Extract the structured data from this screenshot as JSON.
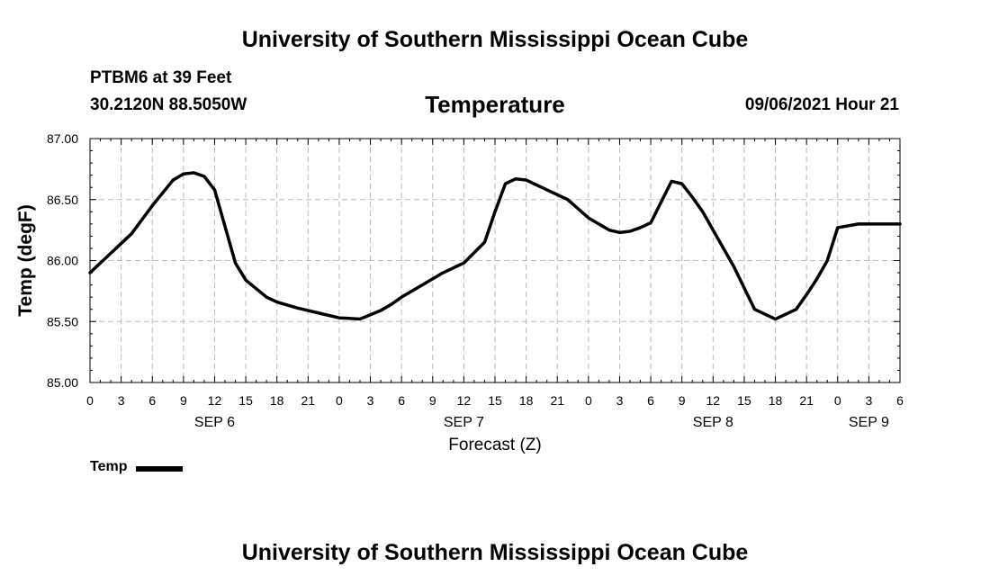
{
  "header": {
    "top_title": "University of Southern Mississippi Ocean Cube",
    "station": "PTBM6 at 39 Feet",
    "coords": "30.2120N  88.5050W",
    "datetime": "09/06/2021 Hour 21",
    "bottom_title": "University of Southern Mississippi Ocean Cube"
  },
  "legend": {
    "label": "Temp"
  },
  "chart_data": {
    "type": "line",
    "title": "Temperature",
    "xlabel": "Forecast (Z)",
    "ylabel": "Temp (degF)",
    "xlim": [
      0,
      78
    ],
    "ylim": [
      85.0,
      87.0
    ],
    "grid": true,
    "y_ticks": [
      85.0,
      85.5,
      86.0,
      86.5,
      87.0
    ],
    "y_tick_labels": [
      "85.00",
      "85.50",
      "86.00",
      "86.50",
      "87.00"
    ],
    "x_ticks": [
      0,
      3,
      6,
      9,
      12,
      15,
      18,
      21,
      24,
      27,
      30,
      33,
      36,
      39,
      42,
      45,
      48,
      51,
      54,
      57,
      60,
      63,
      66,
      69,
      72,
      75,
      78
    ],
    "x_tick_labels": [
      "0",
      "3",
      "6",
      "9",
      "12",
      "15",
      "18",
      "21",
      "0",
      "3",
      "6",
      "9",
      "12",
      "15",
      "18",
      "21",
      "0",
      "3",
      "6",
      "9",
      "12",
      "15",
      "18",
      "21",
      "0",
      "3",
      "6"
    ],
    "day_labels": [
      {
        "text": "SEP 6",
        "hours": 12
      },
      {
        "text": "SEP 7",
        "hours": 36
      },
      {
        "text": "SEP 8",
        "hours": 60
      },
      {
        "text": "SEP 9",
        "hours": 75
      }
    ],
    "series": [
      {
        "name": "Temp",
        "color": "#000000",
        "x": [
          0,
          2,
          4,
          6,
          8,
          9,
          10,
          11,
          12,
          13,
          14,
          15,
          16,
          17,
          18,
          20,
          22,
          24,
          26,
          28,
          29,
          30,
          32,
          34,
          36,
          38,
          39,
          40,
          41,
          42,
          43,
          44,
          46,
          48,
          50,
          51,
          52,
          53,
          54,
          55,
          56,
          57,
          58,
          59,
          60,
          61,
          62,
          64,
          66,
          68,
          69,
          70,
          71,
          72,
          74,
          76,
          78
        ],
        "y": [
          85.9,
          86.06,
          86.22,
          86.45,
          86.66,
          86.71,
          86.72,
          86.69,
          86.58,
          86.28,
          85.98,
          85.84,
          85.77,
          85.7,
          85.66,
          85.61,
          85.57,
          85.53,
          85.52,
          85.59,
          85.64,
          85.7,
          85.8,
          85.9,
          85.98,
          86.15,
          86.4,
          86.63,
          86.67,
          86.66,
          86.62,
          86.58,
          86.5,
          86.35,
          86.25,
          86.23,
          86.24,
          86.27,
          86.31,
          86.48,
          86.65,
          86.63,
          86.52,
          86.4,
          86.25,
          86.1,
          85.95,
          85.6,
          85.52,
          85.6,
          85.72,
          85.85,
          86.0,
          86.27,
          86.3,
          86.3,
          86.3
        ]
      }
    ]
  }
}
